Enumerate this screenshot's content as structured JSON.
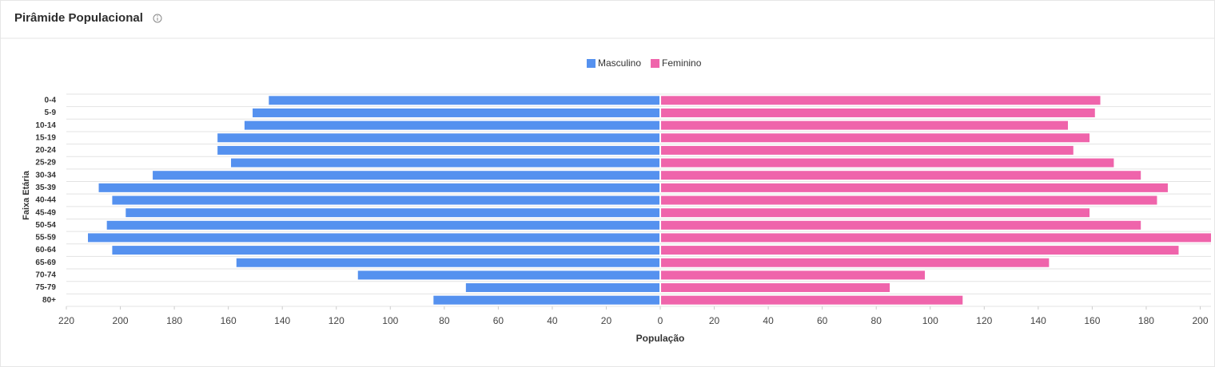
{
  "chart_data": {
    "type": "bar",
    "orientation": "horizontal",
    "title": "Pirâmide Populacional",
    "x_label": "População",
    "y_label": "Faixa Etária",
    "categories": [
      "0-4",
      "5-9",
      "10-14",
      "15-19",
      "20-24",
      "25-29",
      "30-34",
      "35-39",
      "40-44",
      "45-49",
      "50-54",
      "55-59",
      "60-64",
      "65-69",
      "70-74",
      "75-79",
      "80+"
    ],
    "series": [
      {
        "name": "Masculino",
        "color": "#5591ef",
        "values": [
          -145,
          -151,
          -154,
          -164,
          -164,
          -159,
          -188,
          -208,
          -203,
          -198,
          -205,
          -212,
          -203,
          -157,
          -112,
          -72,
          -84
        ]
      },
      {
        "name": "Feminino",
        "color": "#ef64ab",
        "values": [
          163,
          161,
          151,
          159,
          153,
          168,
          178,
          188,
          184,
          159,
          178,
          204,
          192,
          144,
          98,
          85,
          112
        ]
      }
    ],
    "xlim": [
      -220,
      204
    ],
    "xticks": [
      {
        "value": -220,
        "label": "220"
      },
      {
        "value": -200,
        "label": "200"
      },
      {
        "value": -180,
        "label": "180"
      },
      {
        "value": -160,
        "label": "160"
      },
      {
        "value": -140,
        "label": "140"
      },
      {
        "value": -120,
        "label": "120"
      },
      {
        "value": -100,
        "label": "100"
      },
      {
        "value": -80,
        "label": "80"
      },
      {
        "value": -60,
        "label": "60"
      },
      {
        "value": -40,
        "label": "40"
      },
      {
        "value": -20,
        "label": "20"
      },
      0,
      20,
      40,
      60,
      80,
      100,
      120,
      140,
      160,
      180,
      200
    ],
    "grid": true,
    "legend": "top"
  }
}
